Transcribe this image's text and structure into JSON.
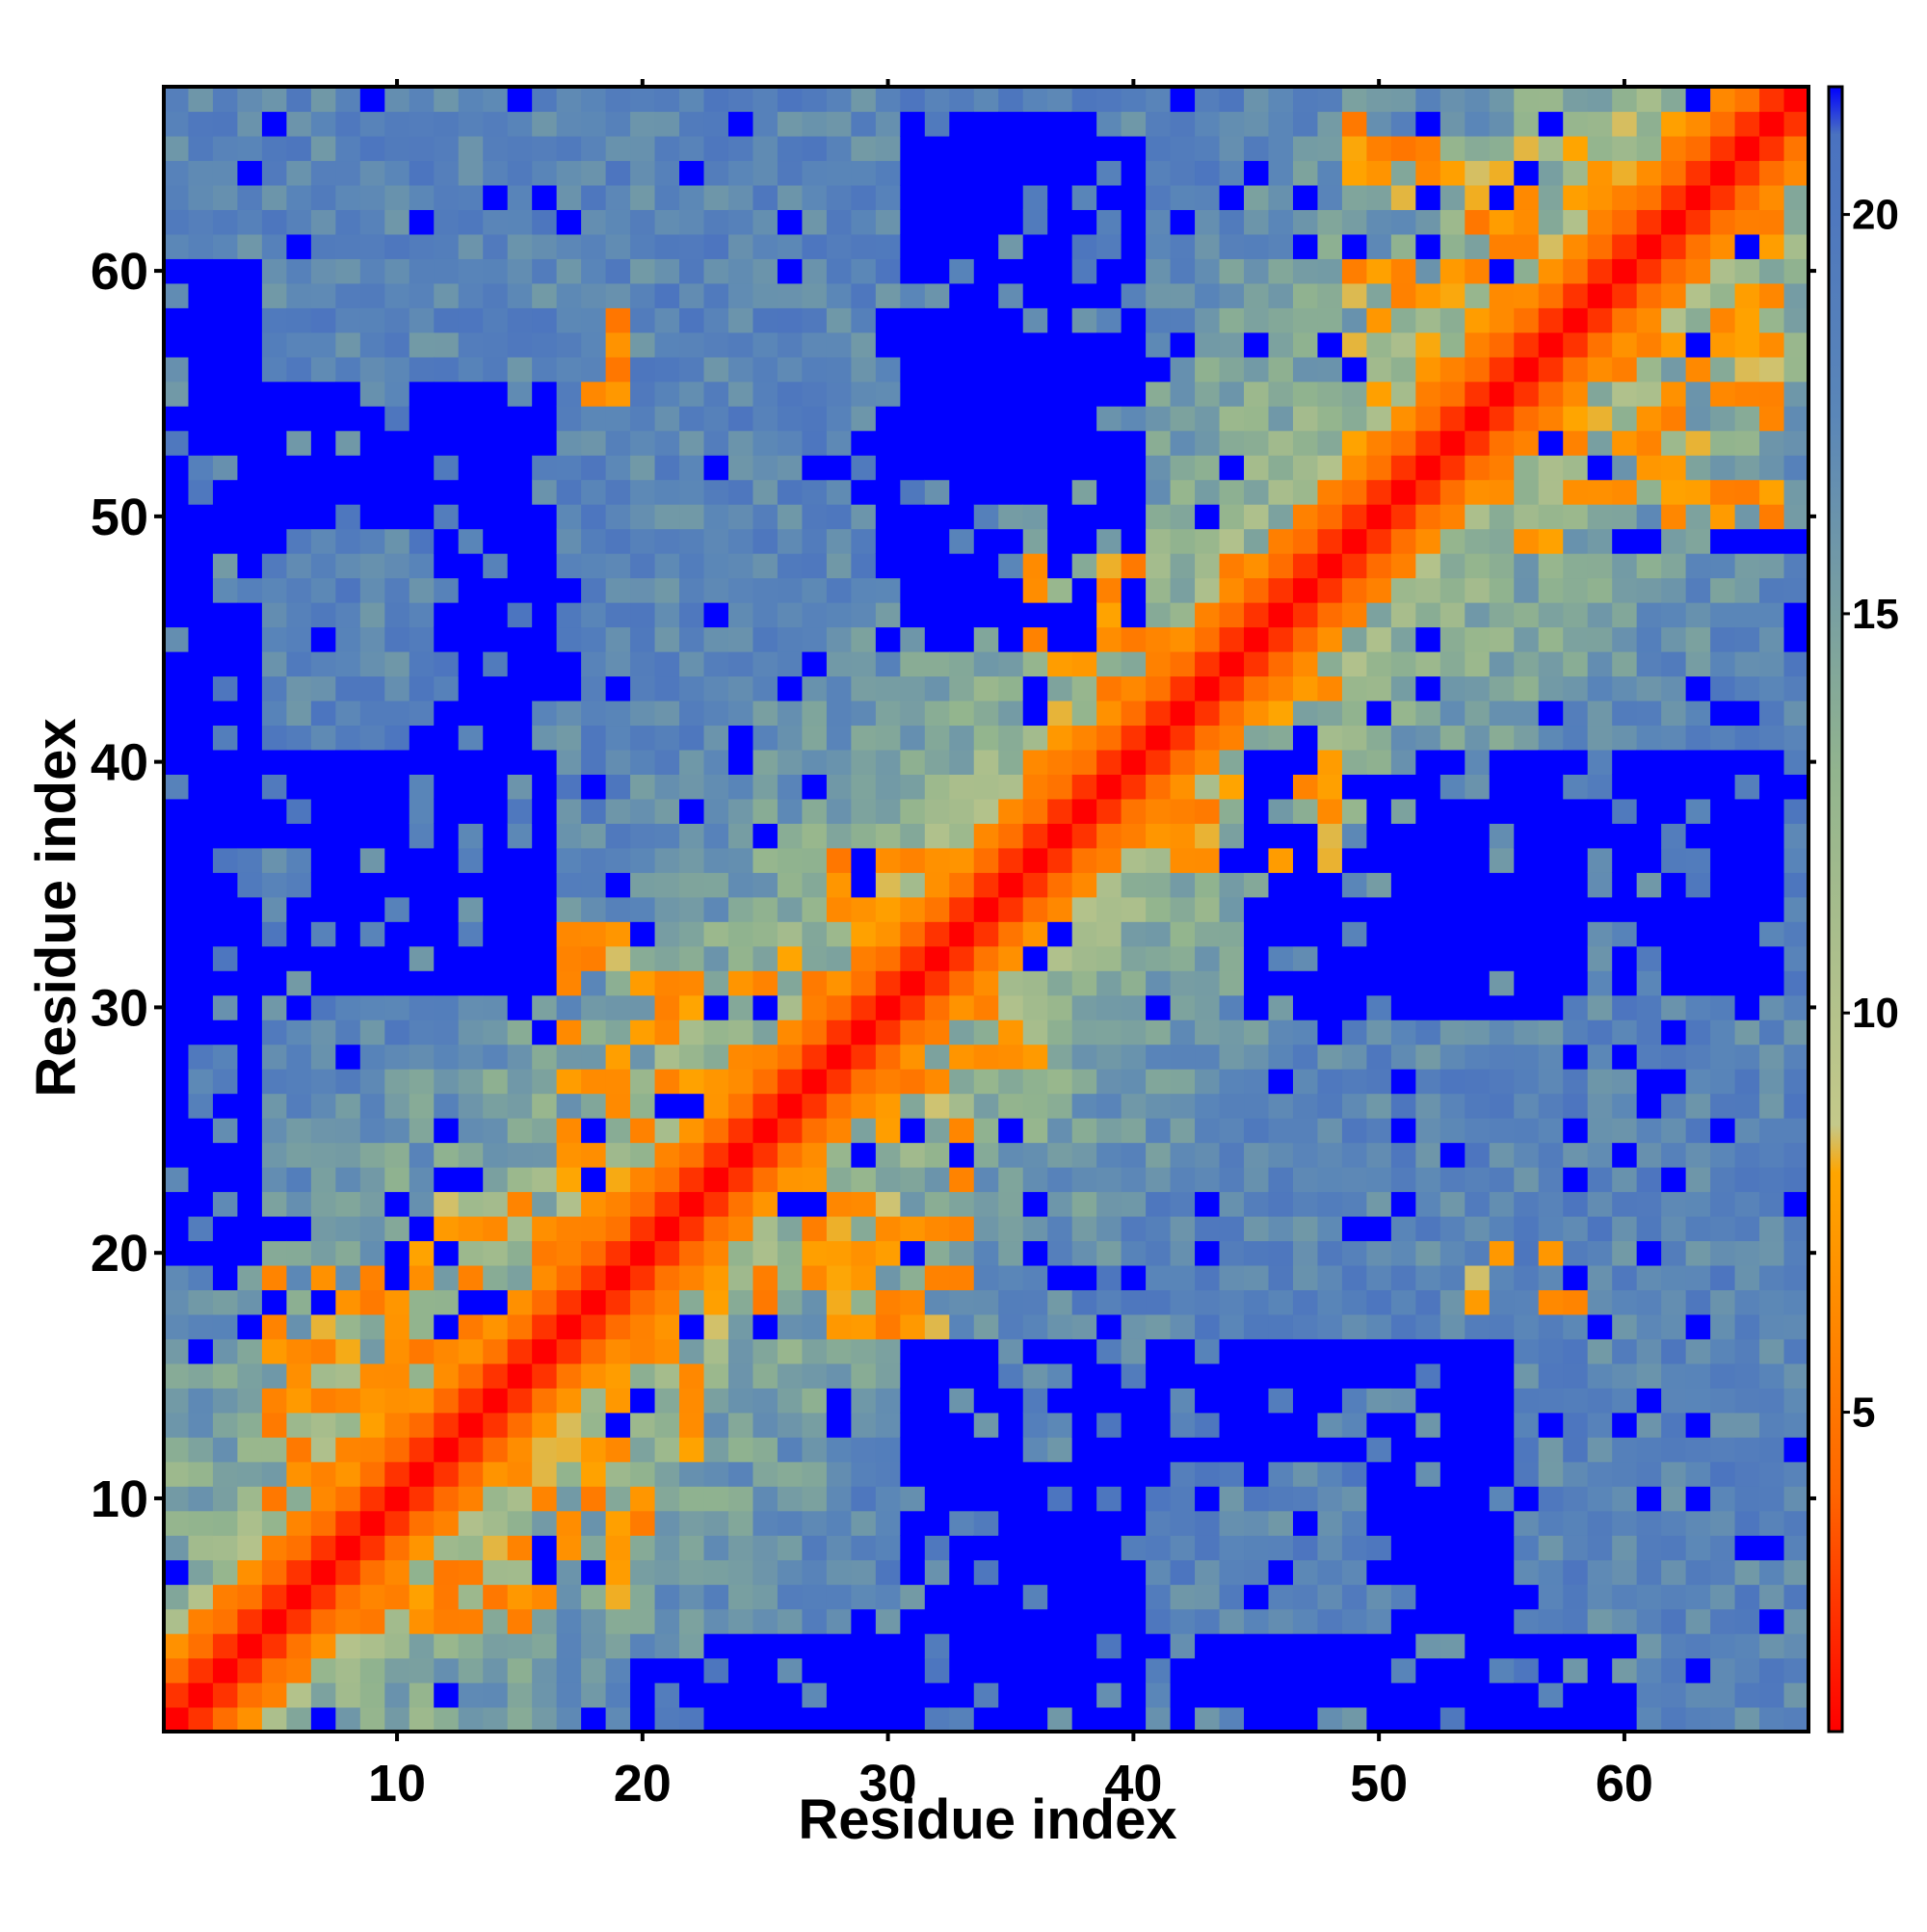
{
  "chart_data": {
    "type": "heatmap",
    "title": "",
    "xlabel": "Residue index",
    "ylabel": "Residue index",
    "n_residues": 67,
    "xlim": [
      0.5,
      67.5
    ],
    "ylim": [
      0.5,
      67.5
    ],
    "x_ticks": [
      10,
      20,
      30,
      40,
      50,
      60
    ],
    "y_ticks": [
      10,
      20,
      30,
      40,
      50,
      60
    ],
    "colorbar": {
      "min": 1.0,
      "max": 21.6,
      "ticks": [
        5,
        10,
        15,
        20
      ],
      "stops": [
        {
          "value": 1.0,
          "color": "#ff0000"
        },
        {
          "value": 4.0,
          "color": "#ff6600"
        },
        {
          "value": 8.0,
          "color": "#ffa500"
        },
        {
          "value": 8.6,
          "color": "#c4c98a"
        },
        {
          "value": 13.0,
          "color": "#92b48e"
        },
        {
          "value": 17.5,
          "color": "#5a86b8"
        },
        {
          "value": 21.0,
          "color": "#4a72c0"
        },
        {
          "value": 21.6,
          "color": "#0000ff"
        }
      ]
    },
    "value_model": "symmetric pairwise distance matrix; value ~ 1 on diagonal rising with |i-j|; low-distance (orange) contact bands near residues 5-20, 10-20, 17-27, 28-33, 36-47, 49-66; high-distance (blue) blocks at (1-4,20-60), (12-16,31-51), (30-40,45-55), (33-39,55-66), (48-58,30-40)"
  }
}
